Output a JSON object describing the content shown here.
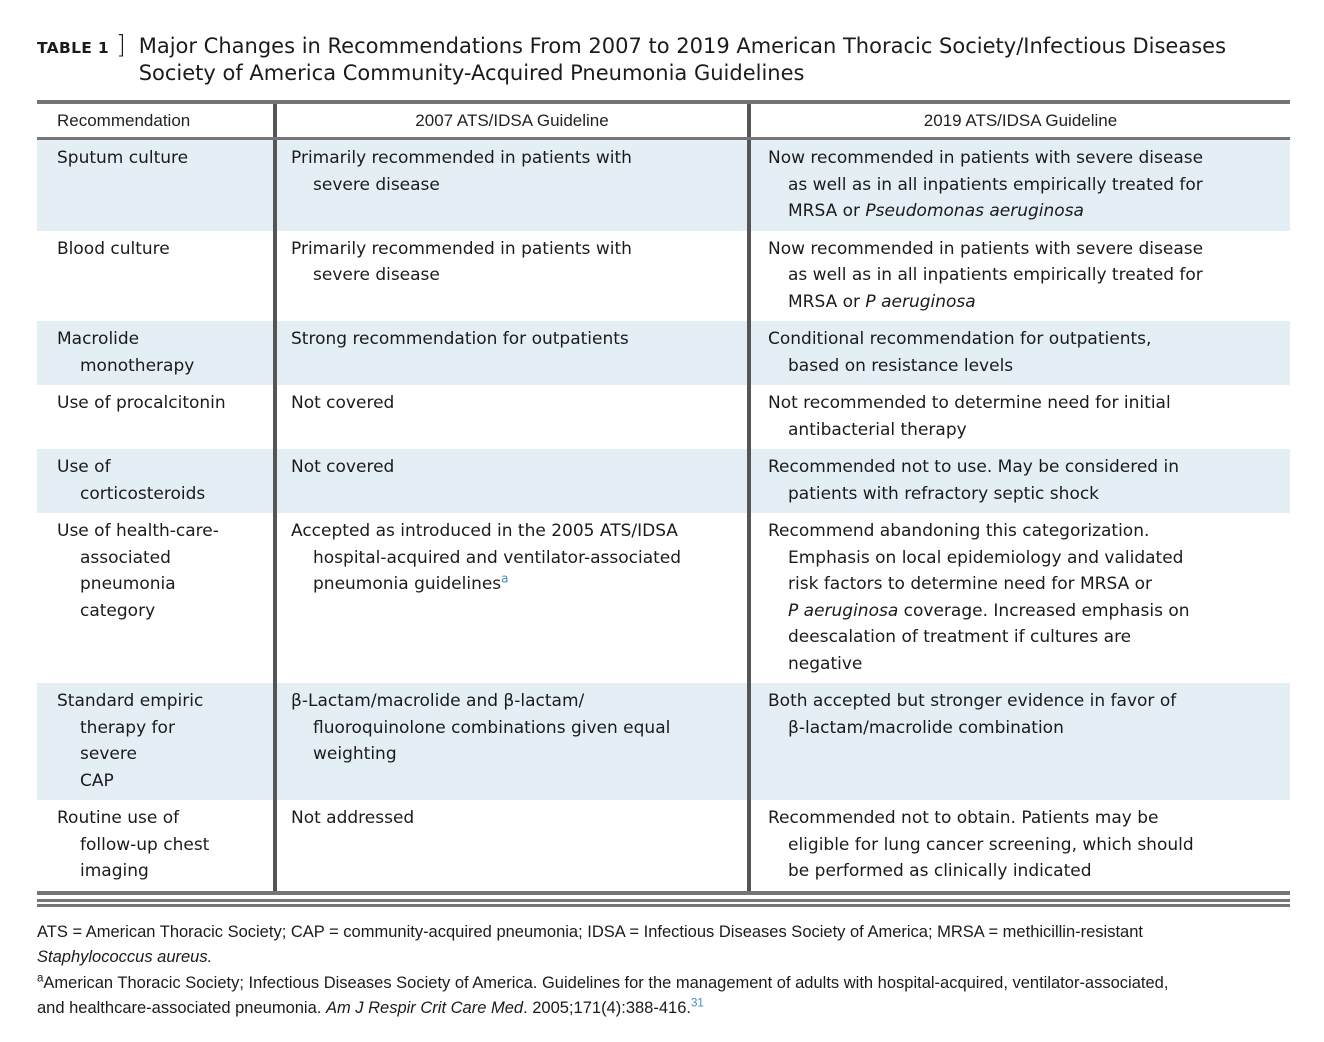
{
  "caption": {
    "label": "TABLE 1",
    "bracket": "]",
    "title": "Major Changes in Recommendations From 2007 to 2019 American Thoracic Society/Infectious Diseases\nSociety of America Community-Acquired Pneumonia Guidelines"
  },
  "table": {
    "columns": [
      "Recommendation",
      "2007 ATS/IDSA Guideline",
      "2019 ATS/IDSA Guideline"
    ],
    "rows": [
      {
        "recommendation": [
          {
            "t": "Sputum culture"
          }
        ],
        "g2007": [
          {
            "t": "Primarily recommended in patients with\nsevere disease"
          }
        ],
        "g2019": [
          {
            "t": "Now recommended in patients with severe disease\nas well as in all inpatients empirically treated for\nMRSA or "
          },
          {
            "t": "Pseudomonas aeruginosa",
            "i": true
          }
        ]
      },
      {
        "recommendation": [
          {
            "t": "Blood culture"
          }
        ],
        "g2007": [
          {
            "t": "Primarily recommended in patients with\nsevere disease"
          }
        ],
        "g2019": [
          {
            "t": "Now recommended in patients with severe disease\nas well as in all inpatients empirically treated for\nMRSA or "
          },
          {
            "t": "P aeruginosa",
            "i": true
          }
        ]
      },
      {
        "recommendation": [
          {
            "t": "Macrolide\nmonotherapy"
          }
        ],
        "g2007": [
          {
            "t": "Strong recommendation for outpatients"
          }
        ],
        "g2019": [
          {
            "t": "Conditional recommendation for outpatients,\nbased on resistance levels"
          }
        ]
      },
      {
        "recommendation": [
          {
            "t": "Use of procalcitonin"
          }
        ],
        "g2007": [
          {
            "t": "Not covered"
          }
        ],
        "g2019": [
          {
            "t": "Not recommended to determine need for initial\nantibacterial therapy"
          }
        ]
      },
      {
        "recommendation": [
          {
            "t": "Use of\ncorticosteroids"
          }
        ],
        "g2007": [
          {
            "t": "Not covered"
          }
        ],
        "g2019": [
          {
            "t": "Recommended not to use. May be considered in\npatients with refractory septic shock"
          }
        ]
      },
      {
        "recommendation": [
          {
            "t": "Use of health-care-\nassociated\npneumonia\ncategory"
          }
        ],
        "g2007": [
          {
            "t": "Accepted as introduced in the 2005 ATS/IDSA\nhospital-acquired and ventilator-associated\npneumonia guidelines"
          },
          {
            "t": "a",
            "sup": true,
            "blue": true
          }
        ],
        "g2019": [
          {
            "t": "Recommend abandoning this categorization.\nEmphasis on local epidemiology and validated\nrisk factors to determine need for MRSA or\n"
          },
          {
            "t": "P aeruginosa",
            "i": true
          },
          {
            "t": " coverage. Increased emphasis on\ndeescalation of treatment if cultures are\nnegative"
          }
        ]
      },
      {
        "recommendation": [
          {
            "t": "Standard empiric\ntherapy for severe\nCAP"
          }
        ],
        "g2007": [
          {
            "t": "β-Lactam/macrolide and β-lactam/\nfluoroquinolone combinations given equal\nweighting"
          }
        ],
        "g2019": [
          {
            "t": "Both accepted but stronger evidence in favor of\nβ-lactam/macrolide combination"
          }
        ]
      },
      {
        "recommendation": [
          {
            "t": "Routine use of\nfollow-up chest\nimaging"
          }
        ],
        "g2007": [
          {
            "t": "Not addressed"
          }
        ],
        "g2019": [
          {
            "t": "Recommended not to obtain. Patients may be\neligible for lung cancer screening, which should\nbe performed as clinically indicated"
          }
        ]
      }
    ]
  },
  "footnotes": {
    "abbreviations": [
      {
        "t": "ATS = American Thoracic Society; CAP = community-acquired pneumonia; IDSA = Infectious Diseases Society of America; MRSA = methicillin-resistant\n"
      },
      {
        "t": "Staphylococcus aureus.",
        "i": true
      }
    ],
    "reference": [
      {
        "t": "a",
        "sup": true
      },
      {
        "t": "American Thoracic Society; Infectious Diseases Society of America. Guidelines for the management of adults with hospital-acquired, ventilator-associated,\nand healthcare-associated pneumonia. "
      },
      {
        "t": "Am J Respir Crit Care Med",
        "i": true
      },
      {
        "t": ". 2005;171(4):388-416."
      },
      {
        "t": "31",
        "sup": true,
        "blue": true
      }
    ]
  },
  "colors": {
    "row_stripe": "#e3eef5",
    "rule_gray": "#757575",
    "divider_gray": "#555555",
    "reference_blue": "#3e8ec6",
    "text": "#1b1b1b"
  }
}
